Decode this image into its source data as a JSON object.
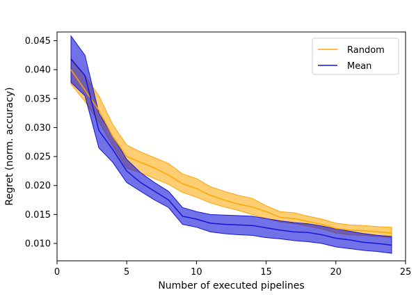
{
  "chart_data": {
    "type": "line",
    "title": "",
    "xlabel": "Number of executed pipelines",
    "ylabel": "Regret (norm. accuracy)",
    "xlim": [
      0,
      25
    ],
    "ylim": [
      0.007,
      0.0465
    ],
    "xticks": [
      0,
      5,
      10,
      15,
      20,
      25
    ],
    "yticks": [
      0.01,
      0.015,
      0.02,
      0.025,
      0.03,
      0.035,
      0.04,
      0.045
    ],
    "xtick_labels": [
      "0",
      "5",
      "10",
      "15",
      "20",
      "25"
    ],
    "ytick_labels": [
      "0.010",
      "0.015",
      "0.020",
      "0.025",
      "0.030",
      "0.035",
      "0.040",
      "0.045"
    ],
    "grid": false,
    "legend_position": "top-right",
    "x": [
      1,
      2,
      3,
      4,
      5,
      6,
      7,
      8,
      9,
      10,
      11,
      12,
      13,
      14,
      15,
      16,
      17,
      18,
      19,
      20,
      21,
      22,
      23,
      24
    ],
    "series": [
      {
        "name": "Random",
        "color": "#FFA500",
        "values": [
          0.04,
          0.0365,
          0.033,
          0.0285,
          0.025,
          0.024,
          0.023,
          0.0218,
          0.0203,
          0.0195,
          0.0183,
          0.0175,
          0.0168,
          0.0163,
          0.0155,
          0.0145,
          0.0143,
          0.0138,
          0.0133,
          0.0126,
          0.0123,
          0.0122,
          0.012,
          0.0118
        ],
        "lower": [
          0.0375,
          0.0345,
          0.031,
          0.0268,
          0.023,
          0.0222,
          0.0212,
          0.0202,
          0.0188,
          0.018,
          0.017,
          0.0163,
          0.0157,
          0.015,
          0.0143,
          0.0137,
          0.0134,
          0.013,
          0.0125,
          0.0118,
          0.0115,
          0.0114,
          0.0112,
          0.011
        ],
        "upper": [
          0.042,
          0.039,
          0.0355,
          0.0305,
          0.027,
          0.0258,
          0.0248,
          0.0238,
          0.022,
          0.0212,
          0.0198,
          0.019,
          0.0183,
          0.0178,
          0.0165,
          0.0155,
          0.0153,
          0.0147,
          0.0142,
          0.0135,
          0.0132,
          0.0131,
          0.0129,
          0.0128
        ]
      },
      {
        "name": "Mean",
        "color": "#1414D8",
        "values": [
          0.0418,
          0.039,
          0.0295,
          0.0262,
          0.0225,
          0.0205,
          0.019,
          0.0175,
          0.0147,
          0.0142,
          0.0135,
          0.0133,
          0.0132,
          0.0131,
          0.0127,
          0.0123,
          0.012,
          0.0119,
          0.0115,
          0.0109,
          0.0106,
          0.0102,
          0.01,
          0.0097
        ],
        "lower": [
          0.0378,
          0.0355,
          0.0265,
          0.024,
          0.0205,
          0.019,
          0.0175,
          0.0162,
          0.0133,
          0.0128,
          0.012,
          0.0117,
          0.0115,
          0.0114,
          0.011,
          0.0108,
          0.0105,
          0.0103,
          0.01,
          0.0094,
          0.0091,
          0.0088,
          0.0086,
          0.0083
        ],
        "upper": [
          0.0458,
          0.0425,
          0.0325,
          0.0285,
          0.0245,
          0.0222,
          0.0205,
          0.019,
          0.0162,
          0.0155,
          0.015,
          0.0149,
          0.0148,
          0.0147,
          0.0143,
          0.0139,
          0.0136,
          0.0134,
          0.013,
          0.0125,
          0.0121,
          0.0117,
          0.0114,
          0.0112
        ]
      }
    ]
  }
}
